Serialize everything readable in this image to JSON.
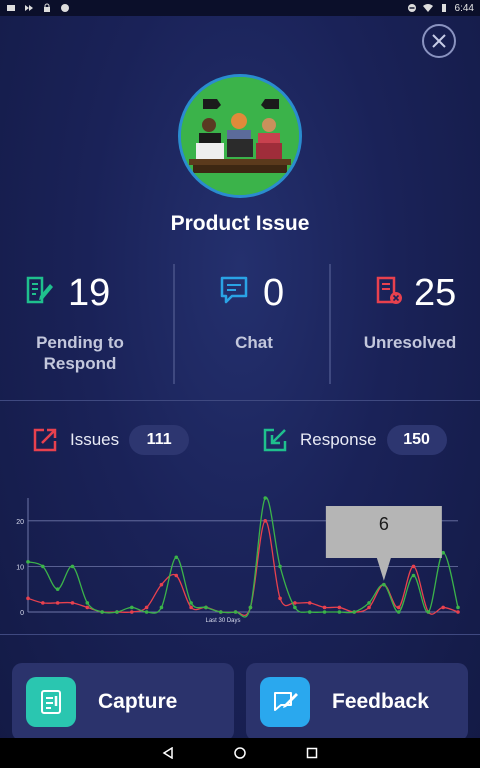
{
  "status_bar": {
    "time": "6:44"
  },
  "header": {
    "title": "Product Issue"
  },
  "stats": [
    {
      "value": "19",
      "label": "Pending to Respond",
      "icon": "edit-document-icon",
      "color": "#1fc08d"
    },
    {
      "value": "0",
      "label": "Chat",
      "icon": "chat-icon",
      "color": "#2aa3e6"
    },
    {
      "value": "25",
      "label": "Unresolved",
      "icon": "document-x-icon",
      "color": "#e8414e"
    }
  ],
  "counters": {
    "issues": {
      "label": "Issues",
      "value": "111",
      "icon": "export-arrow-icon",
      "color": "#e8414e"
    },
    "response": {
      "label": "Response",
      "value": "150",
      "icon": "import-arrow-icon",
      "color": "#1fc08d"
    }
  },
  "chart_data": {
    "type": "line",
    "xlabel": "Last 30 Days",
    "ylabel": "",
    "yticks": [
      0,
      10,
      20
    ],
    "ylim": [
      0,
      25
    ],
    "x": [
      1,
      2,
      3,
      4,
      5,
      6,
      7,
      8,
      9,
      10,
      11,
      12,
      13,
      14,
      15,
      16,
      17,
      18,
      19,
      20,
      21,
      22,
      23,
      24,
      25,
      26,
      27,
      28,
      29,
      30
    ],
    "series": [
      {
        "color": "#e8414e",
        "values": [
          3,
          2,
          2,
          2,
          1,
          0,
          0,
          0,
          1,
          6,
          8,
          1,
          1,
          0,
          0,
          1,
          20,
          3,
          2,
          2,
          1,
          1,
          0,
          1,
          6,
          1,
          10,
          0,
          1,
          0
        ]
      },
      {
        "color": "#3bb34a",
        "values": [
          11,
          10,
          5,
          10,
          2,
          0,
          0,
          1,
          0,
          1,
          12,
          2,
          1,
          0,
          0,
          1,
          25,
          10,
          1,
          0,
          0,
          0,
          0,
          2,
          6,
          0,
          8,
          0,
          13,
          1
        ]
      }
    ],
    "tooltip": "6",
    "grid": true,
    "legend": "none"
  },
  "buttons": {
    "capture": {
      "label": "Capture",
      "icon": "capture-document-icon",
      "color": "#2ac6b0"
    },
    "feedback": {
      "label": "Feedback",
      "icon": "feedback-pen-icon",
      "color": "#2aa8ee"
    }
  }
}
